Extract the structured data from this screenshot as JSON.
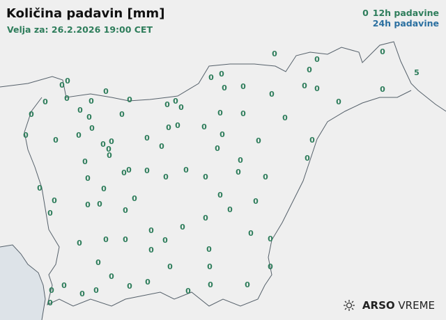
{
  "title": "Količina padavin [mm]",
  "subtitle": "Velja za: 26.2.2026 19:00 CET",
  "legend": {
    "sample_value": "0",
    "h12_label": "12h padavine",
    "h24_label": "24h padavine"
  },
  "colors": {
    "h12": "#2e7d5b",
    "h24": "#2a6fa0",
    "border": "#55606a",
    "sea": "#dde3e8"
  },
  "logo": {
    "brand": "ARSO",
    "suffix": "VREME",
    "icon": "sun-weather-icon"
  },
  "stations_12h": [
    "0",
    "0",
    "0",
    "0",
    "5",
    "0",
    "0",
    "0",
    "0",
    "0",
    "0",
    "0",
    "0",
    "0",
    "0",
    "0",
    "0",
    "0",
    "0",
    "0",
    "0",
    "0",
    "0",
    "0",
    "0",
    "0",
    "0",
    "0",
    "0",
    "0",
    "0",
    "0",
    "0",
    "0",
    "0",
    "0",
    "0",
    "0",
    "0",
    "0",
    "0",
    "0",
    "0",
    "0",
    "0",
    "0",
    "0",
    "0",
    "0",
    "0",
    "0",
    "0",
    "0",
    "0",
    "0",
    "0",
    "0",
    "0",
    "0",
    "0",
    "0",
    "0",
    "0",
    "0",
    "0",
    "0",
    "0",
    "0",
    "0",
    "0",
    "0",
    "0",
    "0",
    "0",
    "0",
    "0",
    "0",
    "0",
    "0",
    "0",
    "0",
    "0",
    "0",
    "0",
    "0",
    "0",
    "0",
    "0",
    "0",
    "0",
    "0",
    "0",
    "0",
    "0",
    "0",
    "0",
    "0",
    "0"
  ]
}
